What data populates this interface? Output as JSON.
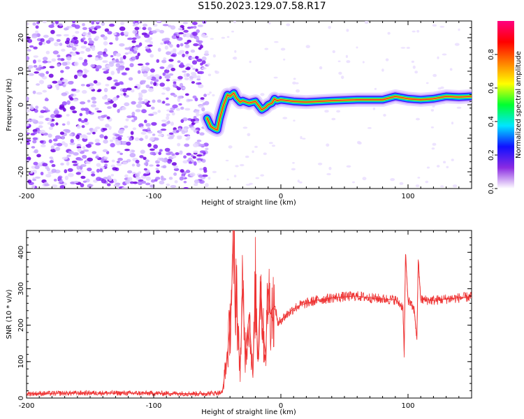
{
  "title": "S150.2023.129.07.58.R17",
  "chart_data": [
    {
      "type": "heatmap",
      "xlabel": "Height of straight line (km)",
      "ylabel": "Frequency (Hz)",
      "xlim": [
        -200,
        150
      ],
      "ylim": [
        -25,
        25
      ],
      "x_ticks": [
        -200,
        -100,
        0,
        100
      ],
      "y_ticks": [
        -20,
        -10,
        0,
        10,
        20
      ],
      "noise_region_x": [
        -200,
        -58
      ],
      "signal_trace": {
        "x": [
          -58,
          -55,
          -52,
          -50,
          -48,
          -45,
          -42,
          -40,
          -37,
          -35,
          -32,
          -30,
          -25,
          -20,
          -17,
          -15,
          -12,
          -10,
          -7,
          -5,
          -3,
          0,
          10,
          20,
          40,
          60,
          80,
          90,
          100,
          110,
          120,
          130,
          140,
          150
        ],
        "freq": [
          -4,
          -6.5,
          -7.2,
          -7.5,
          -4,
          0,
          3,
          2.5,
          3.5,
          2,
          0.8,
          1.2,
          0.5,
          1,
          -0.5,
          -1.5,
          -0.8,
          0,
          0.5,
          1.8,
          1.2,
          1.5,
          1,
          0.8,
          1.2,
          1.5,
          1.5,
          2.5,
          1.8,
          1.5,
          1.8,
          2.5,
          2.3,
          2.5
        ]
      },
      "colorbar": {
        "label": "Normalized spectral amplitude",
        "range": [
          0.0,
          1.0
        ],
        "ticks": [
          "0.0",
          "0.2",
          "0.4",
          "0.6",
          "0.8"
        ],
        "colors": [
          "#ffffff",
          "#8a2be2",
          "#1010ff",
          "#00e6ff",
          "#00ff30",
          "#ffff00",
          "#ff8000",
          "#ff0000",
          "#ff0080"
        ]
      }
    },
    {
      "type": "line",
      "xlabel": "Height of straight line (km)",
      "ylabel": "SNR (10 * v/v)",
      "xlim": [
        -200,
        150
      ],
      "ylim": [
        0,
        460
      ],
      "x_ticks": [
        -200,
        -100,
        0,
        100
      ],
      "y_ticks": [
        0,
        100,
        200,
        300,
        400
      ],
      "color": "#ee3333",
      "series": [
        {
          "x": [
            -200,
            -150,
            -100,
            -60,
            -46,
            -44,
            -42,
            -40,
            -38,
            -37,
            -36,
            -35,
            -34,
            -32,
            -30,
            -28,
            -25,
            -22,
            -20,
            -18,
            -16,
            -14,
            -12,
            -10,
            -8,
            -6,
            -4,
            -2,
            0,
            5,
            10,
            15,
            20,
            25,
            30,
            35,
            40,
            50,
            60,
            70,
            80,
            90,
            96,
            97,
            98,
            100,
            105,
            107,
            108,
            110,
            120,
            130,
            140,
            150
          ],
          "y": [
            12,
            14,
            13,
            12,
            15,
            70,
            120,
            200,
            350,
            450,
            220,
            360,
            180,
            80,
            300,
            120,
            230,
            60,
            310,
            100,
            320,
            180,
            120,
            300,
            230,
            250,
            240,
            200,
            215,
            230,
            245,
            255,
            260,
            265,
            270,
            272,
            275,
            278,
            280,
            275,
            272,
            270,
            250,
            120,
            395,
            270,
            240,
            160,
            380,
            270,
            268,
            272,
            275,
            278
          ]
        }
      ]
    }
  ]
}
